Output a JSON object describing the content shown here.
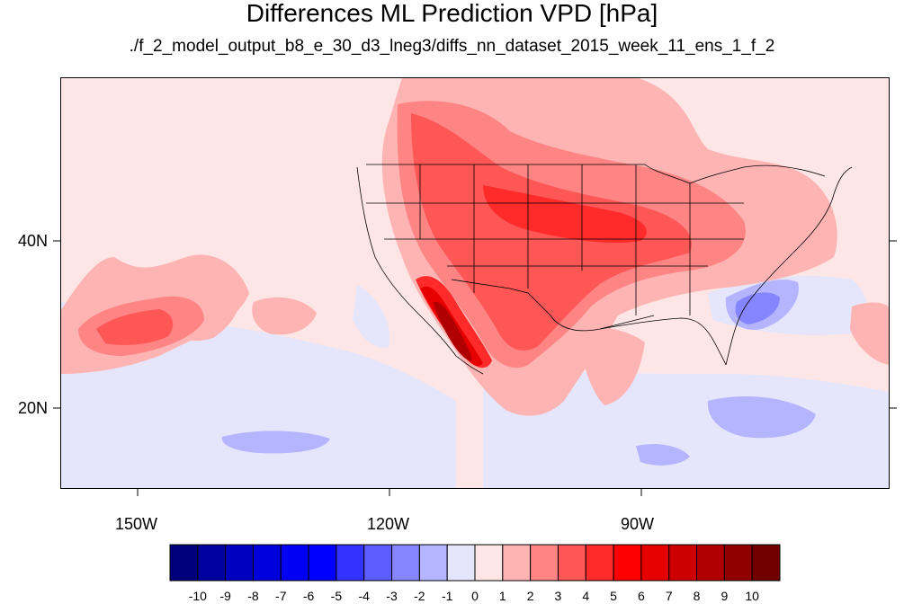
{
  "title": "Differences ML Prediction VPD [hPa]",
  "subtitle": "./f_2_model_output_b8_e_30_d3_lneg3/diffs_nn_dataset_2015_week_11_ens_1_f_2",
  "lat_labels": [
    "40N",
    "20N"
  ],
  "lon_labels": [
    "150W",
    "120W",
    "90W"
  ],
  "colorbar": {
    "labels": [
      "-10",
      "-9",
      "-8",
      "-7",
      "-6",
      "-5",
      "-4",
      "-3",
      "-2",
      "-1",
      "0",
      "1",
      "2",
      "3",
      "4",
      "5",
      "6",
      "7",
      "8",
      "9",
      "10"
    ],
    "colors": [
      "#00007a",
      "#00009e",
      "#0000c0",
      "#0000dd",
      "#0000f5",
      "#0000ff",
      "#3333ff",
      "#5c5cff",
      "#8585ff",
      "#b5b5ff",
      "#e5e5fb",
      "#ffe6e6",
      "#ffb4b4",
      "#ff8484",
      "#ff5656",
      "#ff2b2b",
      "#ff0000",
      "#e60000",
      "#cc0000",
      "#b00000",
      "#900000",
      "#720000"
    ]
  },
  "map_colors": {
    "background": "#ffe6e6",
    "light_blue": "#e5e5fb",
    "blue2": "#b5b5ff",
    "blue3": "#8585ff",
    "blue4": "#5c5cff",
    "red1": "#ffb4b4",
    "red2": "#ff8484",
    "red3": "#ff5656",
    "red4": "#ff2b2b",
    "red5": "#e60000",
    "red6": "#b00000"
  }
}
